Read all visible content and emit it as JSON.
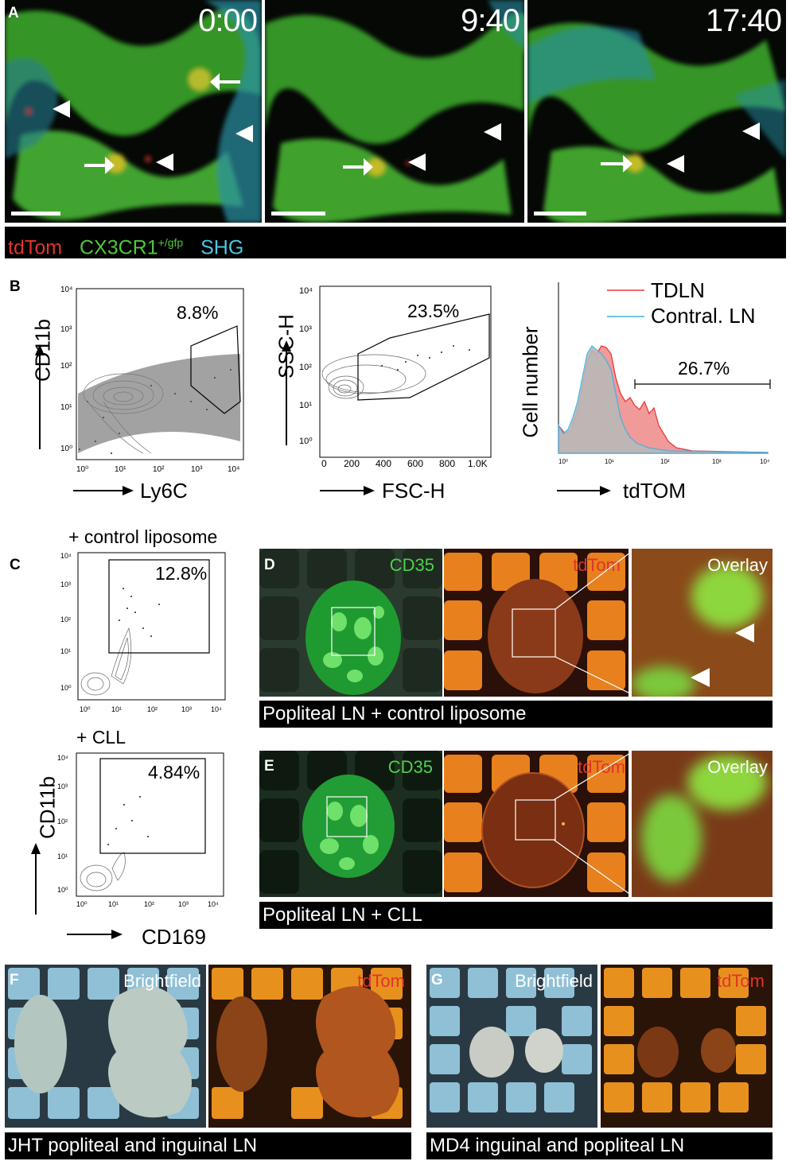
{
  "panels": {
    "A": {
      "letter": "A",
      "timestamps": [
        "0:00",
        "9:40",
        "17:40"
      ],
      "legend": {
        "tdtom": "tdTom",
        "cx3cr1": "CX3CR1",
        "cx3cr1_sup": "+/gfp",
        "shg": "SHG"
      },
      "colors": {
        "tdtom": "#e0342a",
        "cx3cr1": "#4fc83a",
        "shg": "#4fc6e6"
      }
    },
    "B": {
      "letter": "B",
      "plot1": {
        "ylabel": "CD11b",
        "xlabel": "Ly6C",
        "gate_pct": "8.8%"
      },
      "plot2": {
        "ylabel": "SSC-H",
        "xlabel": "FSC-H",
        "gate_pct": "23.5%",
        "y_ticks": [
          "10⁴",
          "10³",
          "10²",
          "10¹",
          "10⁰"
        ],
        "x_ticks": [
          "0",
          "200",
          "400",
          "600",
          "800",
          "1.0K"
        ]
      },
      "plot3": {
        "ylabel": "Cell number",
        "xlabel": "tdTOM",
        "gate_pct": "26.7%",
        "legend": [
          "TDLN",
          "Contral. LN"
        ],
        "colors": {
          "tdln": "#e8393a",
          "contral": "#3cb2e6"
        }
      }
    },
    "C": {
      "letter": "C",
      "top_condition": "+ control liposome",
      "top_pct": "12.8%",
      "bottom_condition": "+ CLL",
      "bottom_pct": "4.84%",
      "ylabel": "CD11b",
      "xlabel": "CD169"
    },
    "D": {
      "letter": "D",
      "labels": [
        "CD35",
        "tdTom",
        "Overlay"
      ],
      "caption": "Popliteal LN + control liposome"
    },
    "E": {
      "letter": "E",
      "labels": [
        "CD35",
        "tdTom",
        "Overlay"
      ],
      "caption": "Popliteal LN + CLL"
    },
    "F": {
      "letter": "F",
      "labels": [
        "Brightfield",
        "tdTom"
      ],
      "caption": "JHT popliteal and inguinal LN"
    },
    "G": {
      "letter": "G",
      "labels": [
        "Brightfield",
        "tdTom"
      ],
      "caption": "MD4 inguinal and popliteal LN"
    }
  }
}
